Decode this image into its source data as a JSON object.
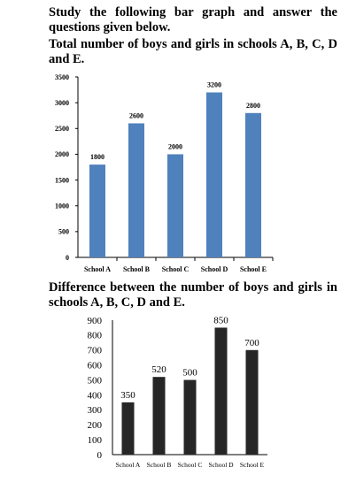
{
  "intro": "Study the following bar graph and answer the questions given below.",
  "chart_data": [
    {
      "type": "bar",
      "title": "Total number of boys and girls in schools A, B, C, D and E.",
      "categories": [
        "School A",
        "School B",
        "School C",
        "School D",
        "School E"
      ],
      "values": [
        1800,
        2600,
        2000,
        3200,
        2800
      ],
      "data_labels": [
        "1800",
        "2600",
        "2000",
        "3200",
        "2800"
      ],
      "yticks": [
        "0",
        "500",
        "1000",
        "1500",
        "2000",
        "2500",
        "3000",
        "3500"
      ],
      "ylim": [
        0,
        3500
      ],
      "grid": false,
      "bar_color": "#4f81bd"
    },
    {
      "type": "bar",
      "title": "Difference between the number of boys and girls in schools A, B, C, D and E.",
      "categories": [
        "School A",
        "School B",
        "School C",
        "School D",
        "School E"
      ],
      "values": [
        350,
        520,
        500,
        850,
        700
      ],
      "data_labels": [
        "350",
        "520",
        "500",
        "850",
        "700"
      ],
      "yticks": [
        "0",
        "100",
        "200",
        "300",
        "400",
        "500",
        "600",
        "700",
        "800",
        "900"
      ],
      "ylim": [
        0,
        900
      ],
      "grid": false,
      "bar_color": "#262626"
    }
  ]
}
